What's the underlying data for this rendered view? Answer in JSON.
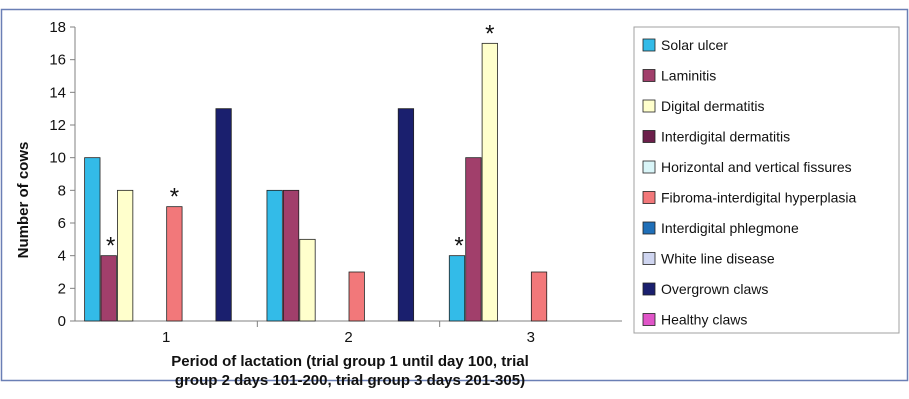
{
  "chart_data": {
    "type": "bar",
    "categories": [
      "1",
      "2",
      "3"
    ],
    "xlabel_line1": "Period of lactation (trial group 1 until day 100, trial",
    "xlabel_line2": "group 2 days 101-200, trial group 3 days 201-305)",
    "ylabel": "Number of cows",
    "ylim": [
      0,
      18
    ],
    "yticks": [
      "0",
      "2",
      "4",
      "6",
      "8",
      "10",
      "12",
      "14",
      "16",
      "18"
    ],
    "grid": false,
    "legend_position": "right",
    "series": [
      {
        "name": "Solar ulcer",
        "color": "#33bbe8",
        "values": [
          10,
          8,
          4
        ]
      },
      {
        "name": "Laminitis",
        "color": "#a13f6b",
        "values": [
          4,
          8,
          10
        ]
      },
      {
        "name": "Digital dermatitis",
        "color": "#ffffcc",
        "values": [
          8,
          5,
          17
        ]
      },
      {
        "name": "Interdigital dermatitis",
        "color": "#6b1f4a",
        "values": [
          0,
          0,
          0
        ]
      },
      {
        "name": "Horizontal and vertical fissures",
        "color": "#d9f5f8",
        "values": [
          0,
          0,
          0
        ]
      },
      {
        "name": "Fibroma-interdigital hyperplasia",
        "color": "#f2787a",
        "values": [
          7,
          3,
          3
        ]
      },
      {
        "name": "Interdigital phlegmone",
        "color": "#1f6fb8",
        "values": [
          0,
          0,
          0
        ]
      },
      {
        "name": "White line disease",
        "color": "#cfd5f0",
        "values": [
          0,
          0,
          0
        ]
      },
      {
        "name": "Overgrown claws",
        "color": "#1a1f6e",
        "values": [
          13,
          13,
          0
        ]
      },
      {
        "name": "Healthy claws",
        "color": "#e055c8",
        "values": [
          0,
          0,
          0
        ]
      }
    ],
    "annotations": [
      {
        "text": "*",
        "category": "1",
        "series": "Laminitis"
      },
      {
        "text": "*",
        "category": "1",
        "series": "Fibroma-interdigital hyperplasia"
      },
      {
        "text": "*",
        "category": "3",
        "series": "Solar ulcer"
      },
      {
        "text": "*",
        "category": "3",
        "series": "Digital dermatitis"
      }
    ]
  }
}
